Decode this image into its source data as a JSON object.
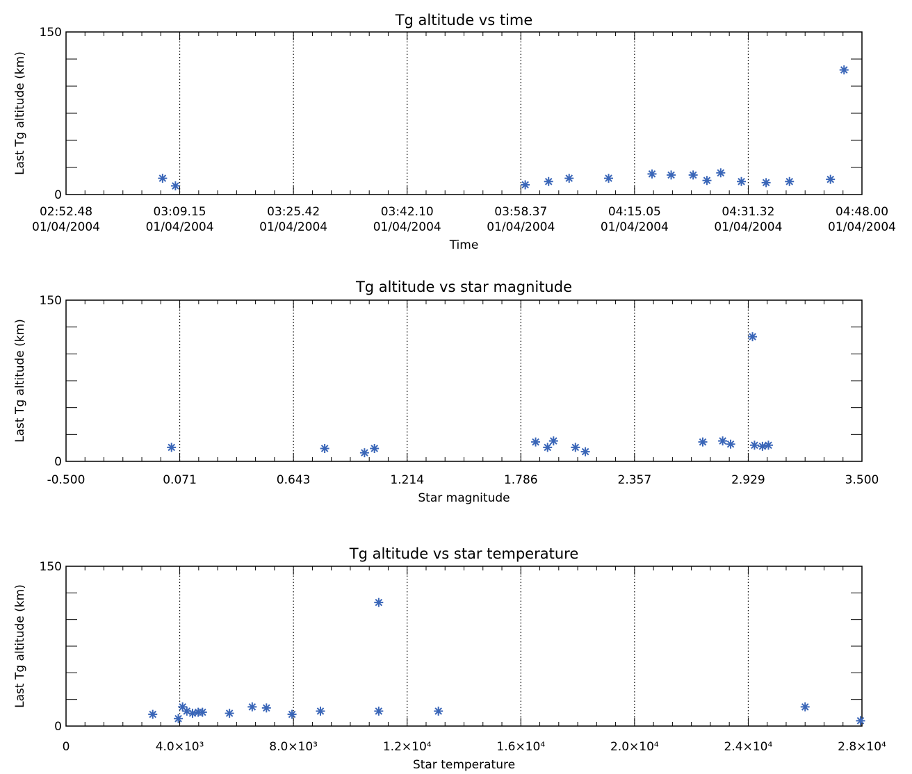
{
  "colors": {
    "marker": "#3a66b8",
    "axis": "#000000",
    "grid": "#000000",
    "background": "#ffffff"
  },
  "chart_data": [
    {
      "type": "scatter",
      "title": "Tg altitude vs time",
      "xlabel": "Time",
      "ylabel": "Last Tg altitude (km)",
      "xlim": [
        "02:52.48",
        "04:48.00"
      ],
      "x_unit": "time (mm:ss.ss after 02:52.48 on 01/04/2004)",
      "x_tick_labels": [
        [
          "02:52.48",
          "01/04/2004"
        ],
        [
          "03:09.15",
          "01/04/2004"
        ],
        [
          "03:25.42",
          "01/04/2004"
        ],
        [
          "03:42.10",
          "01/04/2004"
        ],
        [
          "03:58.37",
          "01/04/2004"
        ],
        [
          "04:15.05",
          "01/04/2004"
        ],
        [
          "04:31.32",
          "01/04/2004"
        ],
        [
          "04:48.00",
          "01/04/2004"
        ]
      ],
      "ylim": [
        0,
        150
      ],
      "y_tick_labels": [
        "0",
        "150"
      ],
      "grid": "vertical dotted lines at major x ticks",
      "series": [
        {
          "marker": "asterisk",
          "points": [
            {
              "x": "03:06.49",
              "y": 15
            },
            {
              "x": "03:08.36",
              "y": 8
            },
            {
              "x": "03:59.13",
              "y": 9
            },
            {
              "x": "04:02.52",
              "y": 12
            },
            {
              "x": "04:05.50",
              "y": 15
            },
            {
              "x": "04:11.23",
              "y": 15
            },
            {
              "x": "04:17.53",
              "y": 19
            },
            {
              "x": "04:20.31",
              "y": 18
            },
            {
              "x": "04:23.50",
              "y": 18
            },
            {
              "x": "04:25.50",
              "y": 13
            },
            {
              "x": "04:27.50",
              "y": 20
            },
            {
              "x": "04:30.50",
              "y": 12
            },
            {
              "x": "04:34.09",
              "y": 11
            },
            {
              "x": "04:37.48",
              "y": 12
            },
            {
              "x": "04:43.43",
              "y": 14
            },
            {
              "x": "04:45.40",
              "y": 115
            }
          ]
        }
      ]
    },
    {
      "type": "scatter",
      "title": "Tg altitude vs star magnitude",
      "xlabel": "Star magnitude",
      "ylabel": "Last Tg altitude (km)",
      "xlim": [
        -0.5,
        3.5
      ],
      "x_tick_labels": [
        "-0.500",
        "0.071",
        "0.643",
        "1.214",
        "1.786",
        "2.357",
        "2.929",
        "3.500"
      ],
      "ylim": [
        0,
        150
      ],
      "y_tick_labels": [
        "0",
        "150"
      ],
      "grid": "vertical dotted lines at major x ticks",
      "series": [
        {
          "marker": "asterisk",
          "points": [
            {
              "x": 0.03,
              "y": 13
            },
            {
              "x": 0.8,
              "y": 12
            },
            {
              "x": 1.0,
              "y": 8
            },
            {
              "x": 1.05,
              "y": 12
            },
            {
              "x": 1.86,
              "y": 18
            },
            {
              "x": 1.92,
              "y": 13
            },
            {
              "x": 1.95,
              "y": 19
            },
            {
              "x": 2.06,
              "y": 13
            },
            {
              "x": 2.11,
              "y": 9
            },
            {
              "x": 2.7,
              "y": 18
            },
            {
              "x": 2.8,
              "y": 19
            },
            {
              "x": 2.84,
              "y": 16
            },
            {
              "x": 2.95,
              "y": 116
            },
            {
              "x": 2.96,
              "y": 15
            },
            {
              "x": 3.0,
              "y": 14
            },
            {
              "x": 3.03,
              "y": 15
            }
          ]
        }
      ]
    },
    {
      "type": "scatter",
      "title": "Tg altitude vs star temperature",
      "xlabel": "Star temperature",
      "ylabel": "Last Tg altitude (km)",
      "xlim": [
        0,
        28000
      ],
      "x_tick_labels": [
        "0",
        "4.0×10³",
        "8.0×10³",
        "1.2×10⁴",
        "1.6×10⁴",
        "2.0×10⁴",
        "2.4×10⁴",
        "2.8×10⁴"
      ],
      "ylim": [
        0,
        150
      ],
      "y_tick_labels": [
        "0",
        "150"
      ],
      "grid": "vertical dotted lines at major x ticks",
      "series": [
        {
          "marker": "asterisk",
          "points": [
            {
              "x": 3050,
              "y": 11
            },
            {
              "x": 3950,
              "y": 7
            },
            {
              "x": 4100,
              "y": 18
            },
            {
              "x": 4250,
              "y": 14
            },
            {
              "x": 4450,
              "y": 12
            },
            {
              "x": 4650,
              "y": 13
            },
            {
              "x": 4800,
              "y": 13
            },
            {
              "x": 5750,
              "y": 12
            },
            {
              "x": 6550,
              "y": 18
            },
            {
              "x": 7050,
              "y": 17
            },
            {
              "x": 7950,
              "y": 11
            },
            {
              "x": 8950,
              "y": 14
            },
            {
              "x": 11000,
              "y": 116
            },
            {
              "x": 11000,
              "y": 14
            },
            {
              "x": 13100,
              "y": 14
            },
            {
              "x": 26000,
              "y": 18
            },
            {
              "x": 27950,
              "y": 5
            }
          ]
        }
      ]
    }
  ]
}
